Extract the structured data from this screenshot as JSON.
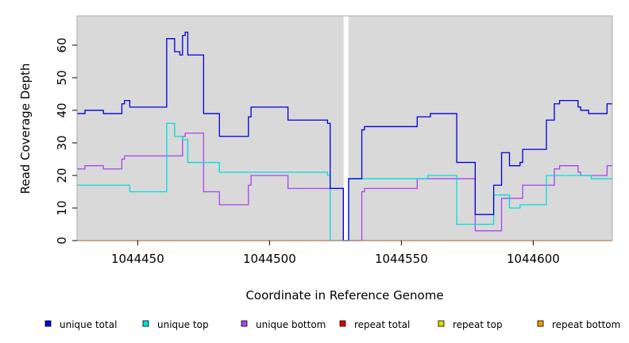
{
  "chart_data": {
    "type": "line",
    "xlabel": "Coordinate in Reference Genome",
    "ylabel": "Read Coverage Depth",
    "xlim": [
      1044427,
      1044630
    ],
    "ylim": [
      0,
      69
    ],
    "x_ticks": [
      1044450,
      1044500,
      1044550,
      1044600
    ],
    "x_tick_labels": [
      "1044450",
      "1044500",
      "1044550",
      "1044600"
    ],
    "y_ticks": [
      0,
      10,
      20,
      30,
      40,
      50,
      60
    ],
    "y_tick_labels": [
      "0",
      "10",
      "20",
      "30",
      "40",
      "50",
      "60"
    ],
    "grid": false,
    "background": "#d9d9d9",
    "gap_x": 1044529,
    "legend_position": "bottom",
    "series": [
      {
        "name": "unique total",
        "color": "#0000dd",
        "points": [
          [
            1044427,
            39
          ],
          [
            1044430,
            39
          ],
          [
            1044430,
            40
          ],
          [
            1044437,
            40
          ],
          [
            1044437,
            39
          ],
          [
            1044444,
            39
          ],
          [
            1044444,
            42
          ],
          [
            1044445,
            42
          ],
          [
            1044445,
            43
          ],
          [
            1044447,
            43
          ],
          [
            1044447,
            41
          ],
          [
            1044461,
            41
          ],
          [
            1044461,
            62
          ],
          [
            1044464,
            62
          ],
          [
            1044464,
            58
          ],
          [
            1044466,
            58
          ],
          [
            1044466,
            57
          ],
          [
            1044467,
            57
          ],
          [
            1044467,
            63
          ],
          [
            1044468,
            63
          ],
          [
            1044468,
            64
          ],
          [
            1044469,
            64
          ],
          [
            1044469,
            57
          ],
          [
            1044475,
            57
          ],
          [
            1044475,
            39
          ],
          [
            1044481,
            39
          ],
          [
            1044481,
            32
          ],
          [
            1044492,
            32
          ],
          [
            1044492,
            38
          ],
          [
            1044493,
            38
          ],
          [
            1044493,
            41
          ],
          [
            1044507,
            41
          ],
          [
            1044507,
            37
          ],
          [
            1044522,
            37
          ],
          [
            1044522,
            36
          ],
          [
            1044523,
            36
          ],
          [
            1044523,
            16
          ],
          [
            1044528,
            16
          ],
          [
            1044528,
            0
          ],
          [
            1044530,
            0
          ],
          [
            1044530,
            19
          ],
          [
            1044535,
            19
          ],
          [
            1044535,
            34
          ],
          [
            1044536,
            34
          ],
          [
            1044536,
            35
          ],
          [
            1044556,
            35
          ],
          [
            1044556,
            38
          ],
          [
            1044561,
            38
          ],
          [
            1044561,
            39
          ],
          [
            1044571,
            39
          ],
          [
            1044571,
            24
          ],
          [
            1044578,
            24
          ],
          [
            1044578,
            8
          ],
          [
            1044585,
            8
          ],
          [
            1044585,
            17
          ],
          [
            1044588,
            17
          ],
          [
            1044588,
            27
          ],
          [
            1044591,
            27
          ],
          [
            1044591,
            23
          ],
          [
            1044595,
            23
          ],
          [
            1044595,
            24
          ],
          [
            1044596,
            24
          ],
          [
            1044596,
            28
          ],
          [
            1044605,
            28
          ],
          [
            1044605,
            37
          ],
          [
            1044608,
            37
          ],
          [
            1044608,
            42
          ],
          [
            1044610,
            42
          ],
          [
            1044610,
            43
          ],
          [
            1044617,
            43
          ],
          [
            1044617,
            41
          ],
          [
            1044618,
            41
          ],
          [
            1044618,
            40
          ],
          [
            1044621,
            40
          ],
          [
            1044621,
            39
          ],
          [
            1044628,
            39
          ],
          [
            1044628,
            42
          ],
          [
            1044630,
            42
          ]
        ]
      },
      {
        "name": "unique top",
        "color": "#00dddd",
        "points": [
          [
            1044427,
            17
          ],
          [
            1044447,
            17
          ],
          [
            1044447,
            15
          ],
          [
            1044461,
            15
          ],
          [
            1044461,
            36
          ],
          [
            1044464,
            36
          ],
          [
            1044464,
            32
          ],
          [
            1044467,
            32
          ],
          [
            1044467,
            31
          ],
          [
            1044469,
            31
          ],
          [
            1044469,
            24
          ],
          [
            1044481,
            24
          ],
          [
            1044481,
            21
          ],
          [
            1044522,
            21
          ],
          [
            1044522,
            20
          ],
          [
            1044523,
            20
          ],
          [
            1044523,
            0
          ],
          [
            1044528,
            0
          ],
          [
            1044528,
            0
          ],
          [
            1044530,
            0
          ],
          [
            1044530,
            19
          ],
          [
            1044560,
            19
          ],
          [
            1044560,
            20
          ],
          [
            1044571,
            20
          ],
          [
            1044571,
            5
          ],
          [
            1044585,
            5
          ],
          [
            1044585,
            14
          ],
          [
            1044591,
            14
          ],
          [
            1044591,
            10
          ],
          [
            1044595,
            10
          ],
          [
            1044595,
            11
          ],
          [
            1044605,
            11
          ],
          [
            1044605,
            20
          ],
          [
            1044618,
            20
          ],
          [
            1044618,
            20
          ],
          [
            1044622,
            20
          ],
          [
            1044622,
            19
          ],
          [
            1044630,
            19
          ]
        ]
      },
      {
        "name": "unique bottom",
        "color": "#aa44ee",
        "points": [
          [
            1044427,
            22
          ],
          [
            1044430,
            22
          ],
          [
            1044430,
            23
          ],
          [
            1044437,
            23
          ],
          [
            1044437,
            22
          ],
          [
            1044444,
            22
          ],
          [
            1044444,
            25
          ],
          [
            1044445,
            25
          ],
          [
            1044445,
            26
          ],
          [
            1044467,
            26
          ],
          [
            1044467,
            32
          ],
          [
            1044468,
            32
          ],
          [
            1044468,
            33
          ],
          [
            1044475,
            33
          ],
          [
            1044475,
            15
          ],
          [
            1044481,
            15
          ],
          [
            1044481,
            11
          ],
          [
            1044492,
            11
          ],
          [
            1044492,
            17
          ],
          [
            1044493,
            17
          ],
          [
            1044493,
            20
          ],
          [
            1044507,
            20
          ],
          [
            1044507,
            16
          ],
          [
            1044523,
            16
          ],
          [
            1044523,
            16
          ],
          [
            1044528,
            16
          ],
          [
            1044528,
            0
          ],
          [
            1044535,
            0
          ],
          [
            1044535,
            15
          ],
          [
            1044536,
            15
          ],
          [
            1044536,
            16
          ],
          [
            1044556,
            16
          ],
          [
            1044556,
            19
          ],
          [
            1044578,
            19
          ],
          [
            1044578,
            3
          ],
          [
            1044588,
            3
          ],
          [
            1044588,
            13
          ],
          [
            1044596,
            13
          ],
          [
            1044596,
            17
          ],
          [
            1044608,
            17
          ],
          [
            1044608,
            22
          ],
          [
            1044610,
            22
          ],
          [
            1044610,
            23
          ],
          [
            1044617,
            23
          ],
          [
            1044617,
            21
          ],
          [
            1044618,
            21
          ],
          [
            1044618,
            20
          ],
          [
            1044628,
            20
          ],
          [
            1044628,
            23
          ],
          [
            1044630,
            23
          ]
        ]
      },
      {
        "name": "repeat total",
        "color": "#dd0000",
        "points": [
          [
            1044427,
            0
          ],
          [
            1044630,
            0
          ]
        ]
      },
      {
        "name": "repeat top",
        "color": "#dddd00",
        "points": [
          [
            1044427,
            0
          ],
          [
            1044630,
            0
          ]
        ]
      },
      {
        "name": "repeat bottom",
        "color": "#ee9900",
        "points": [
          [
            1044427,
            0
          ],
          [
            1044630,
            0
          ]
        ]
      }
    ]
  }
}
